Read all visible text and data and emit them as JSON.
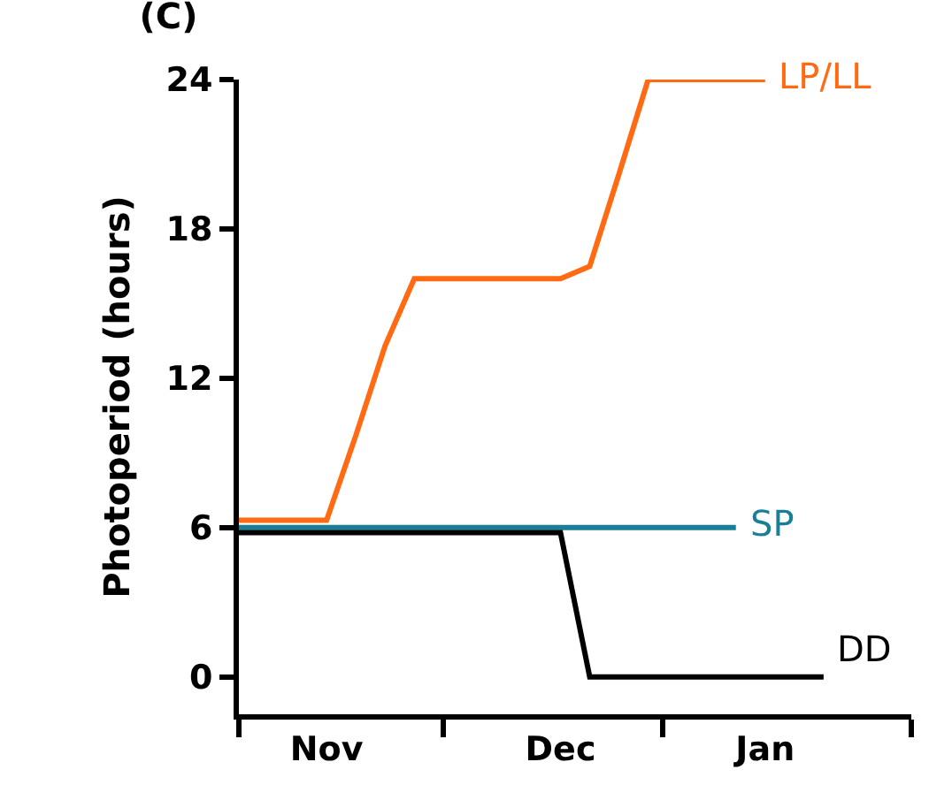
{
  "chart_data": {
    "type": "line",
    "title": "(C)",
    "ylabel": "Photoperiod (hours)",
    "categories": [
      null,
      null,
      null,
      "Nov",
      null,
      null,
      null,
      null,
      null,
      null,
      null,
      "Dec",
      null,
      null,
      null,
      null,
      null,
      null,
      "Jan",
      null,
      null,
      null,
      null,
      null
    ],
    "ylim": [
      -1.5,
      24
    ],
    "yticks": [
      0,
      6,
      12,
      18,
      24
    ],
    "grid": false,
    "legend": false,
    "marker": "none",
    "line_style": "solid",
    "series": [
      {
        "name": "LP/LL",
        "color": "#ff6a13",
        "values": [
          6.3,
          6.3,
          6.3,
          6.3,
          9.7,
          13.3,
          16,
          16,
          16,
          16,
          16,
          16,
          16.5,
          20.2,
          24,
          24,
          24,
          24,
          24,
          null,
          null,
          null,
          null,
          null
        ]
      },
      {
        "name": "SP",
        "color": "#1a7f96",
        "values": [
          6,
          6,
          6,
          6,
          6,
          6,
          6,
          6,
          6,
          6,
          6,
          6,
          6,
          6,
          6,
          6,
          6,
          6,
          null,
          null,
          null,
          null,
          null,
          null
        ]
      },
      {
        "name": "DD",
        "color": "#000000",
        "values": [
          5.8,
          5.8,
          5.8,
          5.8,
          5.8,
          5.8,
          5.8,
          5.8,
          5.8,
          5.8,
          5.8,
          5.8,
          0,
          0,
          0,
          0,
          0,
          0,
          0,
          0,
          0,
          null,
          null,
          null
        ]
      }
    ]
  }
}
